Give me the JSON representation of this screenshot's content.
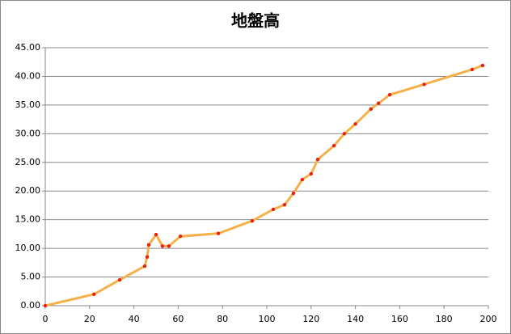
{
  "chart_data": {
    "type": "line",
    "title": "地盤高",
    "x": [
      0,
      22,
      33.6,
      44.9,
      46,
      46.7,
      50,
      52.9,
      55.8,
      61,
      78.1,
      93.4,
      102.9,
      108,
      112,
      116,
      120,
      123,
      130.3,
      135,
      140,
      147,
      150.4,
      155.5,
      171,
      192.7,
      197.4
    ],
    "series": [
      {
        "color": "#f5b04a",
        "marker_color": "#e8200c",
        "values": [
          0,
          2.0,
          4.5,
          6.9,
          8.5,
          10.6,
          12.4,
          10.4,
          10.4,
          12.1,
          12.6,
          14.8,
          16.8,
          17.6,
          19.6,
          22.0,
          23.0,
          25.5,
          27.9,
          30.0,
          31.7,
          34.3,
          35.3,
          36.8,
          38.6,
          41.2,
          41.9
        ]
      }
    ],
    "xlim": [
      0,
      200
    ],
    "xticks": [
      0,
      20,
      40,
      60,
      80,
      100,
      120,
      140,
      160,
      180,
      200
    ],
    "ylim": [
      0,
      45
    ],
    "yticks": [
      {
        "value": 0,
        "label": "0.00"
      },
      {
        "value": 5,
        "label": "5.00"
      },
      {
        "value": 10,
        "label": "10.00"
      },
      {
        "value": 15,
        "label": "15.00"
      },
      {
        "value": 20,
        "label": "20.00"
      },
      {
        "value": 25,
        "label": "25.00"
      },
      {
        "value": 30,
        "label": "30.00"
      },
      {
        "value": 35,
        "label": "35.00"
      },
      {
        "value": 40,
        "label": "40.00"
      },
      {
        "value": 45,
        "label": "45.00"
      }
    ],
    "grid": true
  }
}
